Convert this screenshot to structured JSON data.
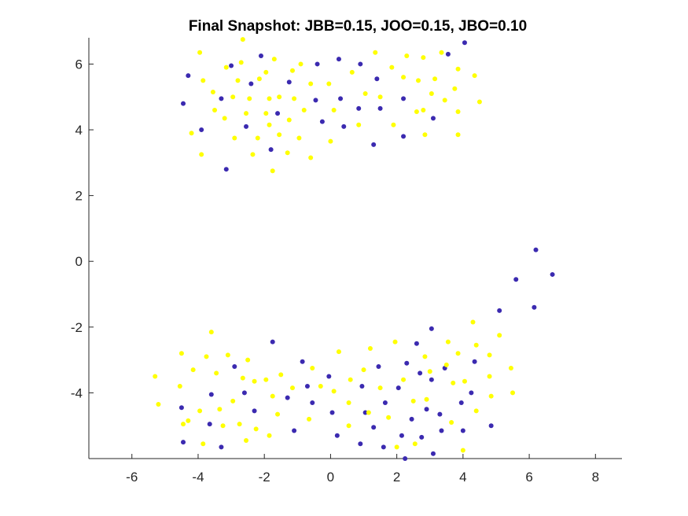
{
  "chart_data": {
    "type": "scatter",
    "title": "Final Snapshot: JBB=0.15, JOO=0.15, JBO=0.10",
    "xlabel": "",
    "ylabel": "",
    "xlim": [
      -7.3,
      8.8
    ],
    "ylim": [
      -6.0,
      6.8
    ],
    "x_ticks": [
      -6,
      -4,
      -2,
      0,
      2,
      4,
      6,
      8
    ],
    "y_ticks": [
      -4,
      -2,
      0,
      2,
      4,
      6
    ],
    "grid": false,
    "legend": "none",
    "series": [
      {
        "color": "#3b2ab0",
        "points": [
          [
            -4.3,
            5.65
          ],
          [
            -4.45,
            4.8
          ],
          [
            -3.9,
            4.0
          ],
          [
            -3.3,
            4.95
          ],
          [
            -3.0,
            5.95
          ],
          [
            -2.4,
            5.4
          ],
          [
            -2.55,
            4.1
          ],
          [
            -2.1,
            6.25
          ],
          [
            -1.8,
            3.4
          ],
          [
            -1.6,
            4.5
          ],
          [
            -1.25,
            5.45
          ],
          [
            -0.4,
            6.0
          ],
          [
            -0.45,
            4.9
          ],
          [
            -0.25,
            4.25
          ],
          [
            0.25,
            6.15
          ],
          [
            0.3,
            4.95
          ],
          [
            0.4,
            4.1
          ],
          [
            0.9,
            6.0
          ],
          [
            0.85,
            4.65
          ],
          [
            1.3,
            3.55
          ],
          [
            1.4,
            5.55
          ],
          [
            1.5,
            4.65
          ],
          [
            2.2,
            4.95
          ],
          [
            2.2,
            3.8
          ],
          [
            3.1,
            4.35
          ],
          [
            3.55,
            6.3
          ],
          [
            4.05,
            6.65
          ],
          [
            -3.15,
            2.8
          ],
          [
            -4.5,
            -4.45
          ],
          [
            -4.45,
            -5.5
          ],
          [
            -3.65,
            -4.95
          ],
          [
            -3.6,
            -4.05
          ],
          [
            -3.3,
            -5.65
          ],
          [
            -2.9,
            -3.2
          ],
          [
            -2.6,
            -4.0
          ],
          [
            -2.3,
            -4.55
          ],
          [
            -1.75,
            -2.45
          ],
          [
            -1.3,
            -4.15
          ],
          [
            -1.1,
            -5.15
          ],
          [
            -0.85,
            -3.05
          ],
          [
            -0.7,
            -3.8
          ],
          [
            -0.55,
            -4.3
          ],
          [
            -0.05,
            -3.5
          ],
          [
            0.05,
            -4.6
          ],
          [
            0.2,
            -5.3
          ],
          [
            0.95,
            -3.8
          ],
          [
            1.05,
            -4.6
          ],
          [
            0.9,
            -5.55
          ],
          [
            1.3,
            -5.05
          ],
          [
            1.45,
            -3.2
          ],
          [
            1.6,
            -5.65
          ],
          [
            1.65,
            -4.3
          ],
          [
            2.05,
            -3.85
          ],
          [
            2.15,
            -5.3
          ],
          [
            2.25,
            -6.0
          ],
          [
            2.3,
            -3.1
          ],
          [
            2.45,
            -4.8
          ],
          [
            2.6,
            -2.5
          ],
          [
            2.7,
            -3.4
          ],
          [
            2.75,
            -5.35
          ],
          [
            2.9,
            -4.5
          ],
          [
            3.05,
            -2.05
          ],
          [
            3.05,
            -3.6
          ],
          [
            3.1,
            -5.85
          ],
          [
            3.3,
            -4.65
          ],
          [
            3.35,
            -5.15
          ],
          [
            3.45,
            -3.25
          ],
          [
            3.95,
            -4.3
          ],
          [
            4.0,
            -5.15
          ],
          [
            4.25,
            -4.0
          ],
          [
            4.35,
            -3.05
          ],
          [
            4.85,
            -5.0
          ],
          [
            5.1,
            -1.5
          ],
          [
            5.6,
            -0.55
          ],
          [
            6.15,
            -1.4
          ],
          [
            6.2,
            0.35
          ],
          [
            6.7,
            -0.4
          ]
        ]
      },
      {
        "color": "#ffff00",
        "points": [
          [
            -4.2,
            3.9
          ],
          [
            -3.95,
            6.35
          ],
          [
            -3.55,
            5.15
          ],
          [
            -3.85,
            5.5
          ],
          [
            -3.9,
            3.25
          ],
          [
            -3.15,
            5.9
          ],
          [
            -3.5,
            4.6
          ],
          [
            -3.2,
            4.35
          ],
          [
            -2.95,
            5.0
          ],
          [
            -2.9,
            3.75
          ],
          [
            -2.8,
            5.5
          ],
          [
            -2.7,
            6.05
          ],
          [
            -2.65,
            6.75
          ],
          [
            -2.55,
            4.5
          ],
          [
            -2.45,
            4.95
          ],
          [
            -2.35,
            3.25
          ],
          [
            -2.2,
            3.75
          ],
          [
            -2.15,
            5.55
          ],
          [
            -1.95,
            4.5
          ],
          [
            -1.85,
            4.95
          ],
          [
            -1.95,
            5.75
          ],
          [
            -1.85,
            4.15
          ],
          [
            -1.75,
            2.75
          ],
          [
            -1.7,
            6.15
          ],
          [
            -1.55,
            3.85
          ],
          [
            -1.55,
            5.0
          ],
          [
            -1.3,
            3.3
          ],
          [
            -1.25,
            4.3
          ],
          [
            -1.15,
            5.8
          ],
          [
            -1.1,
            4.95
          ],
          [
            -0.95,
            3.75
          ],
          [
            -0.9,
            6.0
          ],
          [
            -0.8,
            4.6
          ],
          [
            -0.6,
            5.4
          ],
          [
            -0.6,
            3.15
          ],
          [
            -0.05,
            5.4
          ],
          [
            0.0,
            3.65
          ],
          [
            0.1,
            4.6
          ],
          [
            0.65,
            5.75
          ],
          [
            0.85,
            4.15
          ],
          [
            1.05,
            5.1
          ],
          [
            1.35,
            6.35
          ],
          [
            1.5,
            5.0
          ],
          [
            1.85,
            5.9
          ],
          [
            1.9,
            4.15
          ],
          [
            2.2,
            5.6
          ],
          [
            2.3,
            6.25
          ],
          [
            2.6,
            4.55
          ],
          [
            2.65,
            5.5
          ],
          [
            2.8,
            6.2
          ],
          [
            2.8,
            4.6
          ],
          [
            2.85,
            3.85
          ],
          [
            3.05,
            5.1
          ],
          [
            3.15,
            5.55
          ],
          [
            3.35,
            6.35
          ],
          [
            3.45,
            4.9
          ],
          [
            3.75,
            5.25
          ],
          [
            3.85,
            5.85
          ],
          [
            3.85,
            4.55
          ],
          [
            3.85,
            3.85
          ],
          [
            4.35,
            5.65
          ],
          [
            4.5,
            4.85
          ],
          [
            -5.3,
            -3.5
          ],
          [
            -5.2,
            -4.35
          ],
          [
            -4.55,
            -3.8
          ],
          [
            -4.5,
            -2.8
          ],
          [
            -4.45,
            -4.95
          ],
          [
            -4.3,
            -4.85
          ],
          [
            -4.15,
            -3.3
          ],
          [
            -3.95,
            -4.55
          ],
          [
            -3.85,
            -5.55
          ],
          [
            -3.75,
            -2.9
          ],
          [
            -3.6,
            -2.15
          ],
          [
            -3.45,
            -3.4
          ],
          [
            -3.35,
            -4.5
          ],
          [
            -3.25,
            -5.0
          ],
          [
            -3.1,
            -2.85
          ],
          [
            -2.95,
            -4.25
          ],
          [
            -2.75,
            -4.95
          ],
          [
            -2.65,
            -3.55
          ],
          [
            -2.55,
            -5.45
          ],
          [
            -2.5,
            -3.0
          ],
          [
            -2.3,
            -3.65
          ],
          [
            -2.25,
            -5.1
          ],
          [
            -1.95,
            -3.6
          ],
          [
            -1.85,
            -5.3
          ],
          [
            -1.75,
            -4.1
          ],
          [
            -1.6,
            -4.65
          ],
          [
            -1.5,
            -3.45
          ],
          [
            -1.15,
            -3.85
          ],
          [
            -0.65,
            -4.8
          ],
          [
            -0.55,
            -3.25
          ],
          [
            -0.3,
            -3.8
          ],
          [
            0.1,
            -3.95
          ],
          [
            0.25,
            -2.75
          ],
          [
            0.55,
            -4.3
          ],
          [
            0.55,
            -5.0
          ],
          [
            0.6,
            -3.6
          ],
          [
            1.0,
            -3.3
          ],
          [
            1.15,
            -4.6
          ],
          [
            1.2,
            -2.65
          ],
          [
            1.5,
            -3.85
          ],
          [
            1.75,
            -4.75
          ],
          [
            1.95,
            -2.45
          ],
          [
            2.0,
            -5.65
          ],
          [
            2.2,
            -3.6
          ],
          [
            2.5,
            -4.25
          ],
          [
            2.55,
            -5.55
          ],
          [
            2.85,
            -2.9
          ],
          [
            2.9,
            -4.2
          ],
          [
            3.0,
            -3.35
          ],
          [
            3.5,
            -3.15
          ],
          [
            3.55,
            -2.45
          ],
          [
            3.65,
            -4.9
          ],
          [
            3.7,
            -3.7
          ],
          [
            3.85,
            -2.8
          ],
          [
            4.0,
            -5.75
          ],
          [
            4.05,
            -3.65
          ],
          [
            4.3,
            -1.85
          ],
          [
            4.4,
            -4.55
          ],
          [
            4.4,
            -2.55
          ],
          [
            4.8,
            -2.85
          ],
          [
            4.8,
            -3.5
          ],
          [
            4.85,
            -4.1
          ],
          [
            5.1,
            -2.25
          ],
          [
            5.45,
            -3.25
          ],
          [
            5.5,
            -4.0
          ]
        ]
      }
    ]
  }
}
